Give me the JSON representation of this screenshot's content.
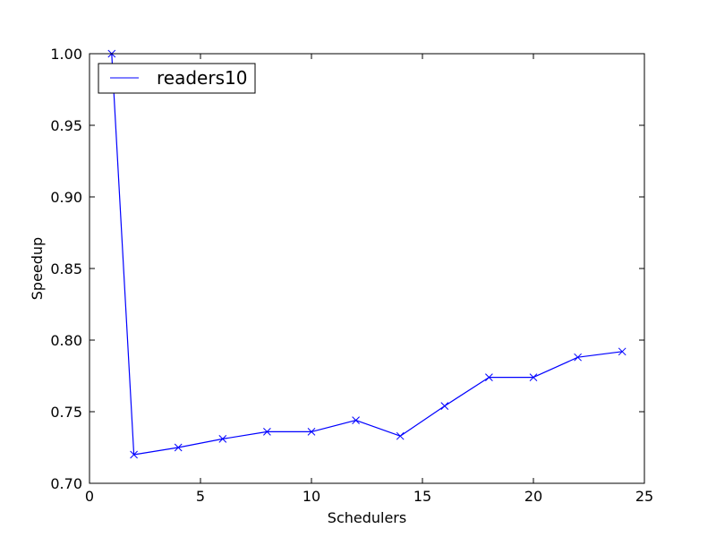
{
  "chart_data": {
    "type": "line",
    "xlabel": "Schedulers",
    "ylabel": "Speedup",
    "xlim": [
      0,
      25
    ],
    "ylim": [
      0.7,
      1.0
    ],
    "xticks": [
      0,
      5,
      10,
      15,
      20,
      25
    ],
    "yticks": [
      0.7,
      0.75,
      0.8,
      0.85,
      0.9,
      0.95,
      1.0
    ],
    "xtick_labels": [
      "0",
      "5",
      "10",
      "15",
      "20",
      "25"
    ],
    "ytick_labels": [
      "0.70",
      "0.75",
      "0.80",
      "0.85",
      "0.90",
      "0.95",
      "1.00"
    ],
    "grid": false,
    "legend_position": "top-left",
    "series": [
      {
        "name": "readers10",
        "color": "#0000ff",
        "marker": "x",
        "x": [
          1,
          2,
          4,
          6,
          8,
          10,
          12,
          14,
          16,
          18,
          20,
          22,
          24
        ],
        "y": [
          1.0,
          0.72,
          0.725,
          0.731,
          0.736,
          0.736,
          0.744,
          0.733,
          0.754,
          0.774,
          0.774,
          0.788,
          0.792
        ]
      }
    ]
  }
}
